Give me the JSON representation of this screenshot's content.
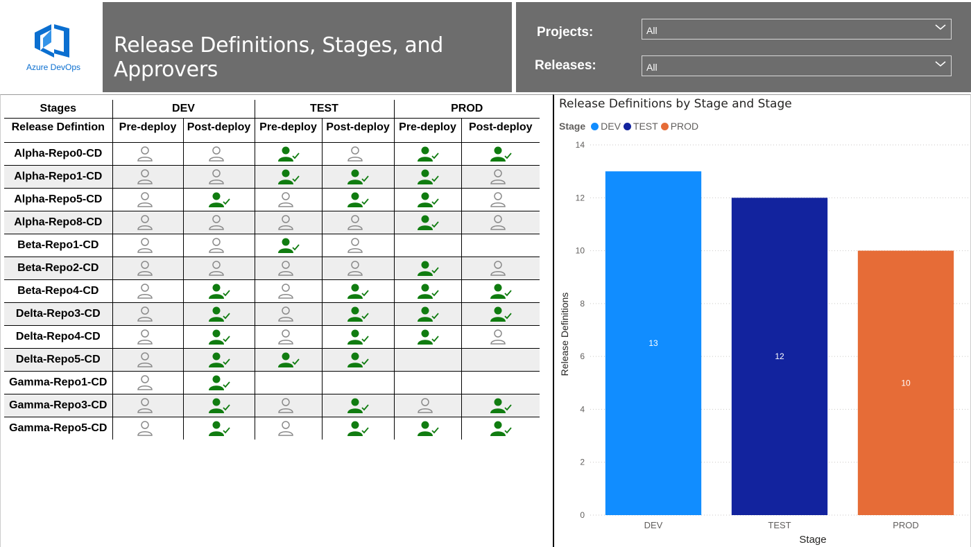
{
  "header": {
    "logo_text": "Azure DevOps",
    "title": "Release Definitions, Stages, and Approvers"
  },
  "filters": {
    "projects": {
      "label": "Projects:",
      "value": "All"
    },
    "releases": {
      "label": "Releases:",
      "value": "All"
    }
  },
  "matrix": {
    "corner_top": "Stages",
    "corner_bottom": "Release Defintion",
    "stages": [
      "DEV",
      "TEST",
      "PROD"
    ],
    "subcols": [
      "Pre-deploy",
      "Post-deploy"
    ],
    "rows": [
      {
        "name": "Alpha-Repo0-CD",
        "cells": [
          "outline",
          "outline",
          "approved",
          "outline",
          "approved",
          "approved"
        ]
      },
      {
        "name": "Alpha-Repo1-CD",
        "cells": [
          "outline",
          "outline",
          "approved",
          "approved",
          "approved",
          "outline"
        ]
      },
      {
        "name": "Alpha-Repo5-CD",
        "cells": [
          "outline",
          "approved",
          "outline",
          "approved",
          "approved",
          "outline"
        ]
      },
      {
        "name": "Alpha-Repo8-CD",
        "cells": [
          "outline",
          "outline",
          "outline",
          "outline",
          "approved",
          "outline"
        ]
      },
      {
        "name": "Beta-Repo1-CD",
        "cells": [
          "outline",
          "outline",
          "approved",
          "outline",
          "",
          ""
        ]
      },
      {
        "name": "Beta-Repo2-CD",
        "cells": [
          "outline",
          "outline",
          "outline",
          "outline",
          "approved",
          "outline"
        ]
      },
      {
        "name": "Beta-Repo4-CD",
        "cells": [
          "outline",
          "approved",
          "outline",
          "approved",
          "approved",
          "approved"
        ]
      },
      {
        "name": "Delta-Repo3-CD",
        "cells": [
          "outline",
          "approved",
          "outline",
          "approved",
          "approved",
          "approved"
        ]
      },
      {
        "name": "Delta-Repo4-CD",
        "cells": [
          "outline",
          "approved",
          "outline",
          "approved",
          "approved",
          "outline"
        ]
      },
      {
        "name": "Delta-Repo5-CD",
        "cells": [
          "outline",
          "approved",
          "approved",
          "approved",
          "",
          ""
        ]
      },
      {
        "name": "Gamma-Repo1-CD",
        "cells": [
          "outline",
          "approved",
          "",
          "",
          "",
          ""
        ]
      },
      {
        "name": "Gamma-Repo3-CD",
        "cells": [
          "outline",
          "approved",
          "outline",
          "approved",
          "outline",
          "approved"
        ]
      },
      {
        "name": "Gamma-Repo5-CD",
        "cells": [
          "outline",
          "approved",
          "outline",
          "approved",
          "approved",
          "approved"
        ]
      }
    ],
    "icon_names": {
      "outline": "person-outline-icon",
      "approved": "person-approved-icon"
    },
    "colors": {
      "approved": "#107c10",
      "outline": "#8a8a8a",
      "shade": "#eeeeee"
    }
  },
  "chart_data": {
    "type": "bar",
    "title": "Release Definitions by Stage and Stage",
    "legend_title": "Stage",
    "legend_position": "top-left",
    "categories": [
      "DEV",
      "TEST",
      "PROD"
    ],
    "values": [
      13,
      12,
      10
    ],
    "colors": [
      "#118dff",
      "#12239e",
      "#e66c37"
    ],
    "xlabel": "Stage",
    "ylabel": "Release Definitions",
    "ylim": [
      0,
      14
    ],
    "yticks": [
      0,
      2,
      4,
      6,
      8,
      10,
      12,
      14
    ],
    "grid": true
  }
}
